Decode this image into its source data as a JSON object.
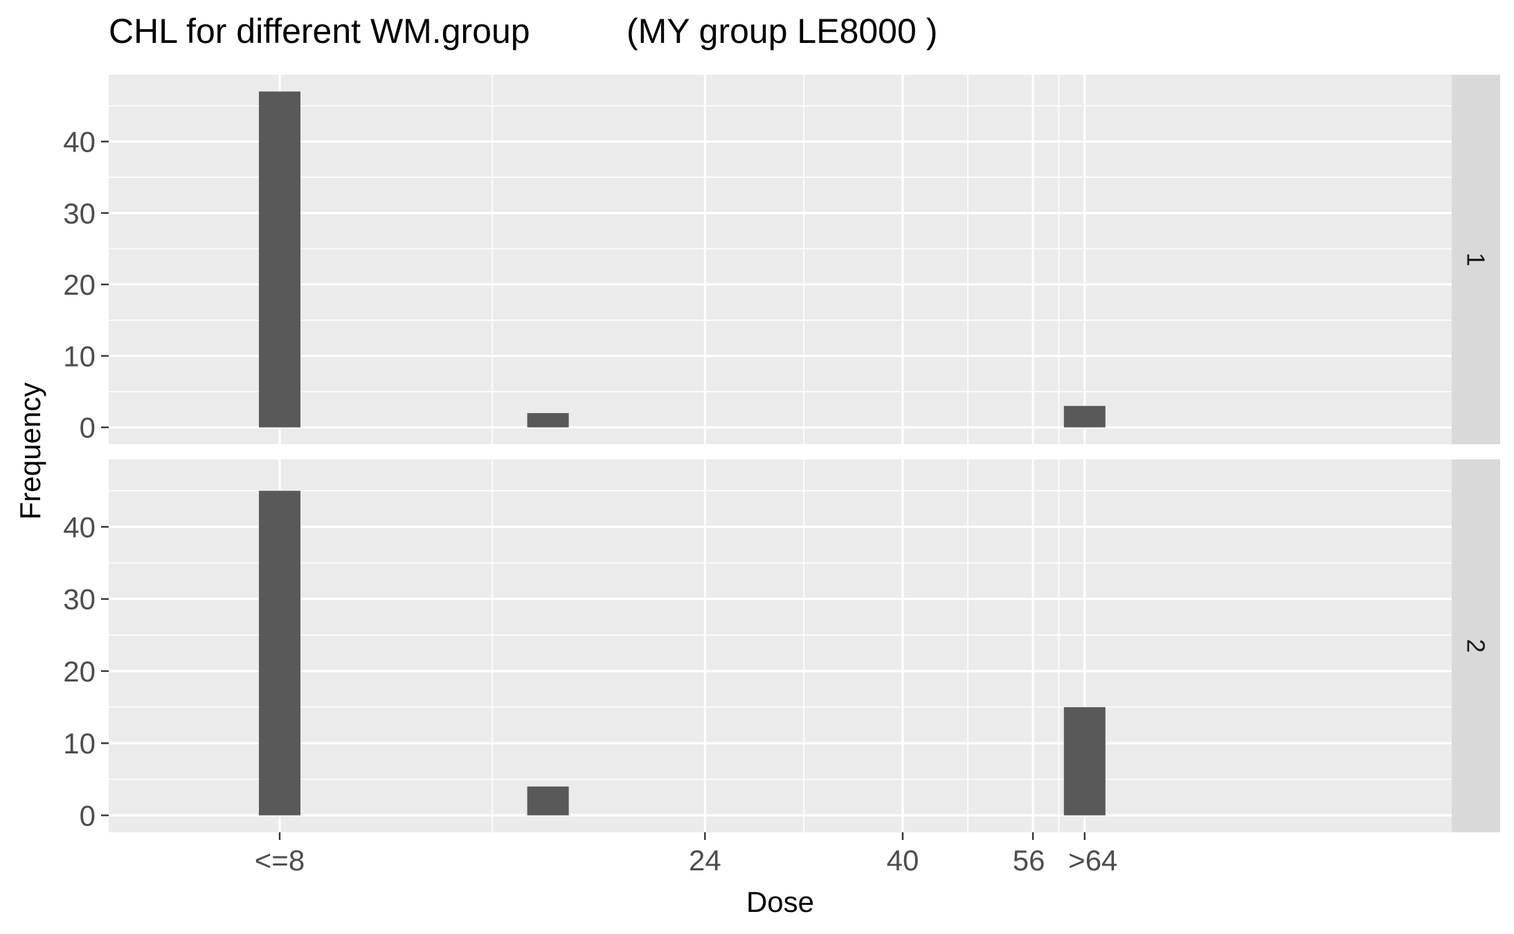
{
  "chart_data": {
    "type": "bar",
    "title": "CHL for different WM.group",
    "subtitle": "(MY group LE8000 )",
    "xlabel": "Dose",
    "ylabel": "Frequency",
    "x_tick_labels": [
      "<=8",
      "24",
      "40",
      "56",
      ">64"
    ],
    "x_tick_positions": [
      8,
      24,
      40,
      56,
      64
    ],
    "x_scale": "log2",
    "y_ticks": [
      0,
      10,
      20,
      30,
      40
    ],
    "ylim": [
      -2.35,
      49.35
    ],
    "grid": true,
    "facet_variable": "WM.group",
    "facets": [
      {
        "strip_label": "1",
        "bars": [
          {
            "x": 8,
            "value": 47
          },
          {
            "x": 16,
            "value": 2
          },
          {
            "x": 64,
            "value": 3
          }
        ]
      },
      {
        "strip_label": "2",
        "bars": [
          {
            "x": 8,
            "value": 45
          },
          {
            "x": 16,
            "value": 4
          },
          {
            "x": 64,
            "value": 15
          }
        ]
      }
    ],
    "colors": {
      "bar": "#595959",
      "panel_background": "#ebebeb",
      "grid_major": "#ffffff",
      "strip_background": "#d9d9d9",
      "tick": "#333333"
    }
  }
}
